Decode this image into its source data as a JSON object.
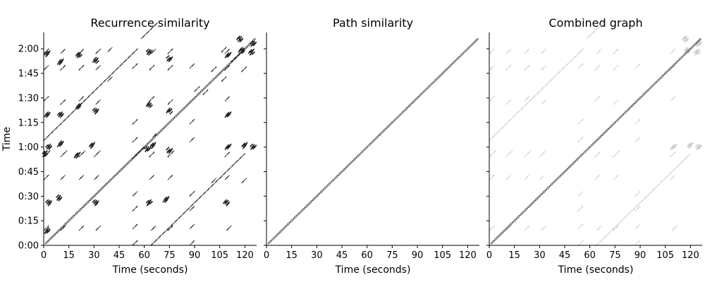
{
  "chart_data": [
    {
      "type": "heatmap",
      "title": "Recurrence similarity",
      "xlabel": "Time (seconds)",
      "ylabel": "Time",
      "xlim": [
        0,
        127
      ],
      "ylim": [
        0,
        130
      ],
      "xticks": [
        0,
        15,
        30,
        45,
        60,
        75,
        90,
        105,
        120
      ],
      "xtick_labels": [
        "0",
        "15",
        "30",
        "45",
        "60",
        "75",
        "90",
        "105",
        "120"
      ],
      "yticks": [
        0,
        15,
        30,
        45,
        60,
        75,
        90,
        105,
        120
      ],
      "ytick_labels": [
        "0:00",
        "0:15",
        "0:30",
        "0:45",
        "1:00",
        "1:15",
        "1:30",
        "1:45",
        "2:00"
      ],
      "color": "#222222",
      "main_diagonal": true,
      "diagonal_segments": [
        [
          58,
          126,
          10
        ],
        [
          0,
          64,
          56
        ],
        [
          64,
          0,
          56
        ],
        [
          53,
          53,
          6
        ],
        [
          112,
          112,
          8
        ],
        [
          0,
          54,
          4
        ],
        [
          10,
          54,
          4
        ],
        [
          21,
          54,
          4
        ],
        [
          30,
          54,
          4
        ],
        [
          63,
          54,
          3
        ],
        [
          74,
          54,
          4
        ],
        [
          108,
          54,
          3
        ],
        [
          0,
          9,
          3
        ],
        [
          10,
          9,
          3
        ],
        [
          21,
          9,
          3
        ],
        [
          31,
          9,
          3
        ],
        [
          64,
          9,
          3
        ],
        [
          74,
          9,
          3
        ],
        [
          109,
          9,
          3
        ],
        [
          0,
          40,
          3
        ],
        [
          10,
          40,
          3
        ],
        [
          21,
          40,
          3
        ],
        [
          30,
          40,
          3
        ],
        [
          63,
          40,
          3
        ],
        [
          74,
          40,
          3
        ],
        [
          108,
          40,
          3
        ],
        [
          0,
          88,
          3
        ],
        [
          10,
          86,
          3
        ],
        [
          21,
          88,
          3
        ],
        [
          31,
          86,
          3
        ],
        [
          63,
          88,
          3
        ],
        [
          74,
          86,
          3
        ],
        [
          108,
          88,
          3
        ],
        [
          0,
          107,
          3
        ],
        [
          10,
          107,
          3
        ],
        [
          21,
          107,
          3
        ],
        [
          31,
          107,
          3
        ],
        [
          63,
          107,
          3
        ],
        [
          74,
          107,
          3
        ],
        [
          108,
          107,
          3
        ],
        [
          0,
          117,
          3
        ],
        [
          10,
          117,
          3
        ],
        [
          21,
          117,
          3
        ],
        [
          31,
          117,
          3
        ],
        [
          64,
          117,
          3
        ],
        [
          74,
          117,
          3
        ],
        [
          108,
          117,
          3
        ],
        [
          53,
          0,
          3
        ],
        [
          53,
          10,
          3
        ],
        [
          53,
          21,
          3
        ],
        [
          53,
          30,
          3
        ],
        [
          53,
          63,
          3
        ],
        [
          53,
          74,
          3
        ],
        [
          53,
          108,
          3
        ],
        [
          87,
          0,
          3
        ],
        [
          87,
          10,
          3
        ],
        [
          87,
          21,
          3
        ],
        [
          87,
          30,
          3
        ],
        [
          87,
          63,
          3
        ],
        [
          87,
          74,
          3
        ],
        [
          87,
          108,
          3
        ],
        [
          38,
          118,
          3
        ],
        [
          38,
          100,
          3
        ],
        [
          106,
          118,
          3
        ],
        [
          106,
          100,
          3
        ],
        [
          118,
          38,
          3
        ],
        [
          100,
          38,
          3
        ],
        [
          118,
          106,
          3
        ],
        [
          100,
          106,
          3
        ],
        [
          90,
          94,
          3
        ],
        [
          95,
          92,
          3
        ],
        [
          65,
          66,
          2
        ],
        [
          58,
          58,
          2
        ]
      ],
      "blobs": [
        [
          2,
          9
        ],
        [
          3,
          26
        ],
        [
          9,
          29
        ],
        [
          31,
          26
        ],
        [
          63,
          26
        ],
        [
          73,
          28
        ],
        [
          109,
          26
        ],
        [
          1,
          56
        ],
        [
          3,
          60
        ],
        [
          10,
          62
        ],
        [
          20,
          55
        ],
        [
          29,
          61
        ],
        [
          62,
          59
        ],
        [
          65,
          61
        ],
        [
          75,
          58
        ],
        [
          110,
          60
        ],
        [
          120,
          61
        ],
        [
          125,
          60
        ],
        [
          21,
          85
        ],
        [
          2,
          80
        ],
        [
          10,
          80
        ],
        [
          31,
          82
        ],
        [
          63,
          86
        ],
        [
          75,
          82
        ],
        [
          110,
          80
        ],
        [
          2,
          117
        ],
        [
          10,
          112
        ],
        [
          21,
          116
        ],
        [
          31,
          113
        ],
        [
          63,
          118
        ],
        [
          75,
          114
        ],
        [
          110,
          116
        ],
        [
          118,
          119
        ],
        [
          124,
          118
        ],
        [
          117,
          126
        ],
        [
          125,
          123
        ]
      ]
    },
    {
      "type": "heatmap",
      "title": "Path similarity",
      "xlabel": "Time (seconds)",
      "xlim": [
        0,
        127
      ],
      "ylim": [
        0,
        130
      ],
      "xticks": [
        0,
        15,
        30,
        45,
        60,
        75,
        90,
        105,
        120
      ],
      "xtick_labels": [
        "0",
        "15",
        "30",
        "45",
        "60",
        "75",
        "90",
        "105",
        "120"
      ],
      "color": "#333333",
      "main_diagonal": true,
      "diagonal_segments": [],
      "blobs": []
    },
    {
      "type": "heatmap",
      "title": "Combined graph",
      "xlabel": "Time (seconds)",
      "xlim": [
        0,
        127
      ],
      "ylim": [
        0,
        130
      ],
      "xticks": [
        0,
        15,
        30,
        45,
        60,
        75,
        90,
        105,
        120
      ],
      "xtick_labels": [
        "0",
        "15",
        "30",
        "45",
        "60",
        "75",
        "90",
        "105",
        "120"
      ],
      "color": "#cccccc",
      "main_diagonal": true,
      "diagonal_segments": [
        [
          58,
          126,
          10
        ],
        [
          0,
          64,
          56
        ],
        [
          64,
          0,
          56
        ],
        [
          0,
          54,
          4
        ],
        [
          10,
          54,
          4
        ],
        [
          21,
          54,
          4
        ],
        [
          30,
          54,
          4
        ],
        [
          63,
          54,
          3
        ],
        [
          74,
          54,
          4
        ],
        [
          108,
          54,
          3
        ],
        [
          0,
          9,
          3
        ],
        [
          10,
          9,
          3
        ],
        [
          21,
          9,
          3
        ],
        [
          31,
          9,
          3
        ],
        [
          64,
          9,
          3
        ],
        [
          74,
          9,
          3
        ],
        [
          109,
          9,
          3
        ],
        [
          0,
          40,
          3
        ],
        [
          10,
          40,
          3
        ],
        [
          21,
          40,
          3
        ],
        [
          30,
          40,
          3
        ],
        [
          63,
          40,
          3
        ],
        [
          74,
          40,
          3
        ],
        [
          108,
          40,
          3
        ],
        [
          0,
          88,
          3
        ],
        [
          10,
          86,
          3
        ],
        [
          21,
          88,
          3
        ],
        [
          31,
          86,
          3
        ],
        [
          63,
          88,
          3
        ],
        [
          74,
          86,
          3
        ],
        [
          108,
          88,
          3
        ],
        [
          0,
          107,
          3
        ],
        [
          10,
          107,
          3
        ],
        [
          21,
          107,
          3
        ],
        [
          31,
          107,
          3
        ],
        [
          63,
          107,
          3
        ],
        [
          74,
          107,
          3
        ],
        [
          108,
          107,
          3
        ],
        [
          0,
          117,
          3
        ],
        [
          10,
          117,
          3
        ],
        [
          21,
          117,
          3
        ],
        [
          31,
          117,
          3
        ],
        [
          64,
          117,
          3
        ],
        [
          74,
          117,
          3
        ],
        [
          108,
          117,
          3
        ],
        [
          53,
          0,
          3
        ],
        [
          53,
          10,
          3
        ],
        [
          53,
          21,
          3
        ],
        [
          53,
          30,
          3
        ],
        [
          53,
          63,
          3
        ],
        [
          53,
          74,
          3
        ],
        [
          53,
          108,
          3
        ],
        [
          87,
          0,
          3
        ],
        [
          87,
          10,
          3
        ],
        [
          87,
          21,
          3
        ],
        [
          87,
          30,
          3
        ],
        [
          87,
          63,
          3
        ],
        [
          87,
          74,
          3
        ],
        [
          87,
          108,
          3
        ]
      ],
      "blobs": [
        [
          110,
          60
        ],
        [
          120,
          61
        ],
        [
          125,
          60
        ],
        [
          118,
          119
        ],
        [
          124,
          118
        ],
        [
          117,
          126
        ],
        [
          125,
          123
        ]
      ]
    }
  ]
}
